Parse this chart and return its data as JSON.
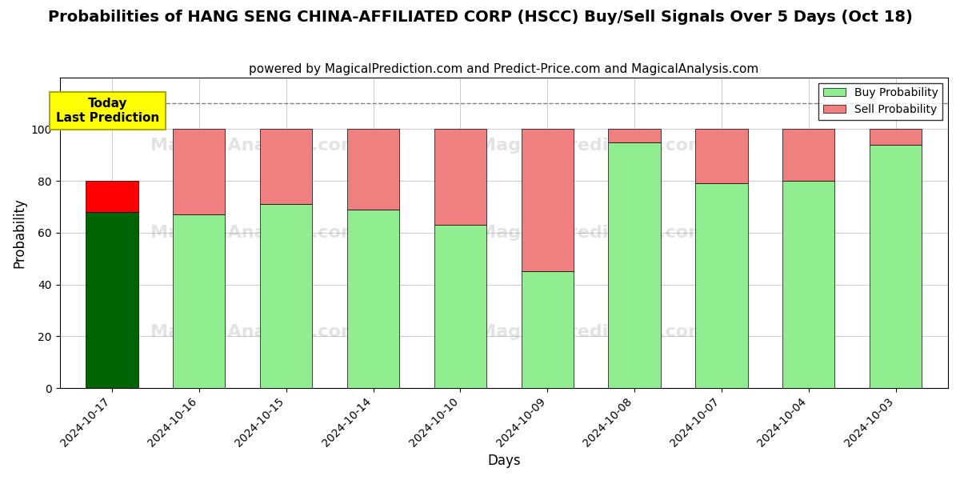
{
  "title": "Probabilities of HANG SENG CHINA-AFFILIATED CORP (HSCC) Buy/Sell Signals Over 5 Days (Oct 18)",
  "subtitle": "powered by MagicalPrediction.com and Predict-Price.com and MagicalAnalysis.com",
  "xlabel": "Days",
  "ylabel": "Probability",
  "categories": [
    "2024-10-17",
    "2024-10-16",
    "2024-10-15",
    "2024-10-14",
    "2024-10-10",
    "2024-10-09",
    "2024-10-08",
    "2024-10-07",
    "2024-10-04",
    "2024-10-03"
  ],
  "buy_values": [
    68,
    67,
    71,
    69,
    63,
    45,
    95,
    79,
    80,
    94
  ],
  "sell_values": [
    12,
    33,
    29,
    31,
    37,
    55,
    5,
    21,
    20,
    6
  ],
  "today_buy_color": "#006400",
  "today_sell_color": "#FF0000",
  "buy_color": "#90EE90",
  "sell_color": "#F08080",
  "ylim": [
    0,
    120
  ],
  "yticks": [
    0,
    20,
    40,
    60,
    80,
    100
  ],
  "dashed_line_y": 110,
  "annotation_text": "Today\nLast Prediction",
  "annotation_box_color": "#FFFF00",
  "legend_buy_label": "Buy Probability",
  "legend_sell_label": "Sell Probability",
  "title_fontsize": 14,
  "subtitle_fontsize": 11,
  "axis_label_fontsize": 12,
  "tick_fontsize": 10,
  "bar_width": 0.6,
  "background_color": "#FFFFFF",
  "grid_color": "#CCCCCC"
}
